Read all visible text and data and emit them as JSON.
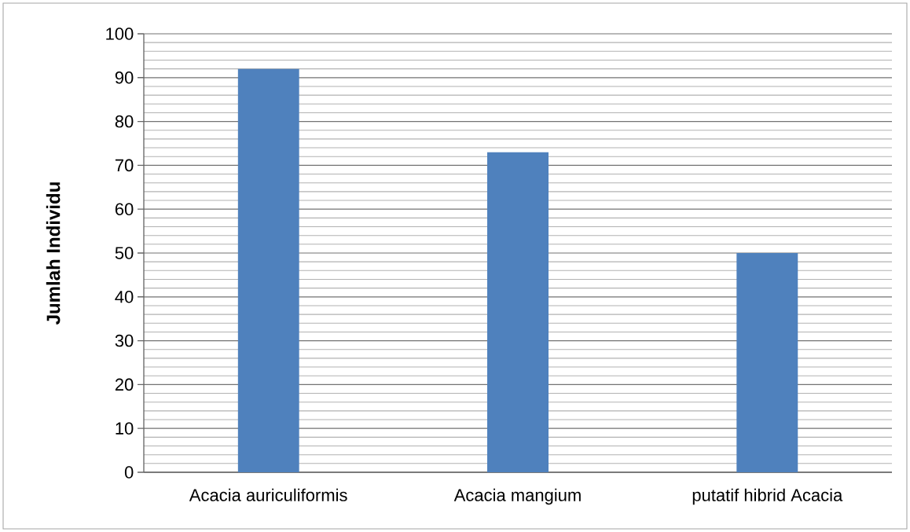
{
  "chart_data": {
    "type": "bar",
    "ylabel": "Jumlah Individu",
    "categories": [
      "Acacia auriculiformis",
      "Acacia mangium",
      "putatif hibrid Acacia"
    ],
    "values": [
      92,
      73,
      50
    ],
    "color": "#4f81bd",
    "ylim": [
      0,
      100
    ],
    "yticks": [
      0,
      10,
      20,
      30,
      40,
      50,
      60,
      70,
      80,
      90,
      100
    ],
    "grid": "y"
  }
}
